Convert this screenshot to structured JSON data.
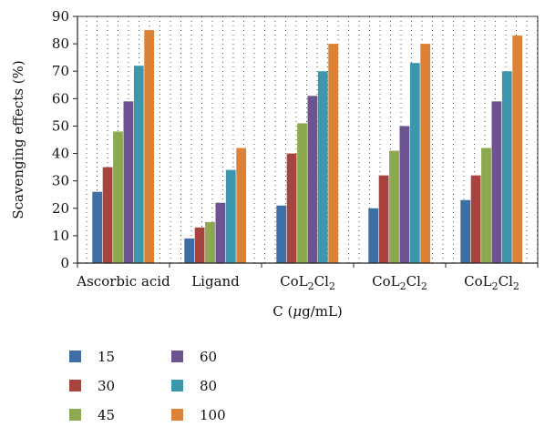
{
  "chart_data": {
    "type": "bar",
    "categories": [
      "Ascorbic acid",
      "Ligand",
      "CoL2Cl2",
      "CoL2Cl2",
      "CoL2Cl2"
    ],
    "category_subscript_label": {
      "base1": "CoL",
      "sub1": "2",
      "base2": "Cl",
      "sub2": "2"
    },
    "series": [
      {
        "name": "15",
        "color": "#3D6FA5",
        "values": [
          26,
          9,
          21,
          20,
          23
        ]
      },
      {
        "name": "30",
        "color": "#A84440",
        "values": [
          35,
          13,
          40,
          32,
          32
        ]
      },
      {
        "name": "45",
        "color": "#8CA952",
        "values": [
          48,
          15,
          51,
          41,
          42
        ]
      },
      {
        "name": "60",
        "color": "#6E5391",
        "values": [
          59,
          22,
          61,
          50,
          59
        ]
      },
      {
        "name": "80",
        "color": "#3C97AD",
        "values": [
          72,
          34,
          70,
          73,
          70
        ]
      },
      {
        "name": "100",
        "color": "#DC8237",
        "values": [
          85,
          42,
          80,
          80,
          83
        ]
      }
    ],
    "xlabel_main": "C (",
    "xlabel_mu": "μ",
    "xlabel_rest": "g/mL)",
    "ylabel": "Scavenging effects (%)",
    "ylim": [
      0,
      90
    ],
    "yticks": [
      0,
      10,
      20,
      30,
      40,
      50,
      60,
      70,
      80,
      90
    ],
    "grid": "dotted-vertical",
    "legend_position": "bottom-left"
  }
}
